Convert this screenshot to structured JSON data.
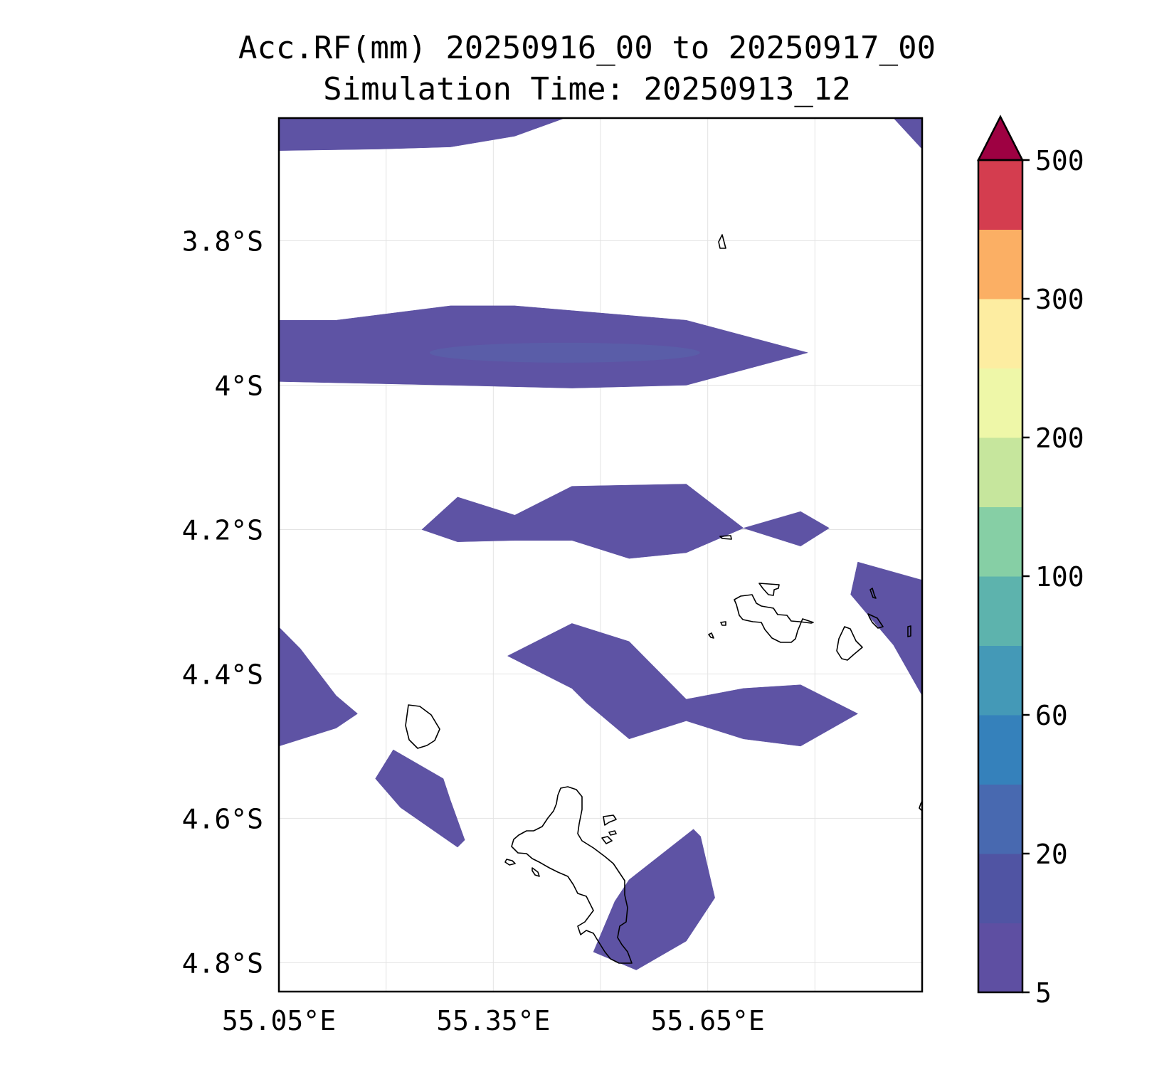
{
  "title": {
    "line1": "Acc.RF(mm) 20250916_00 to 20250917_00",
    "line2": "Simulation Time: 20250913_12"
  },
  "map": {
    "lon_range": [
      55.05,
      55.95
    ],
    "lat_range": [
      -4.84,
      -3.63
    ],
    "lat_ticks": [
      {
        "value": -3.8,
        "label": "3.8°S"
      },
      {
        "value": -4.0,
        "label": "4°S"
      },
      {
        "value": -4.2,
        "label": "4.2°S"
      },
      {
        "value": -4.4,
        "label": "4.4°S"
      },
      {
        "value": -4.6,
        "label": "4.6°S"
      },
      {
        "value": -4.8,
        "label": "4.8°S"
      }
    ],
    "lon_ticks": [
      {
        "value": 55.05,
        "label": "55.05°E"
      },
      {
        "value": 55.35,
        "label": "55.35°E"
      },
      {
        "value": 55.65,
        "label": "55.65°E"
      }
    ],
    "grid_lons": [
      55.05,
      55.2,
      55.35,
      55.5,
      55.65,
      55.8
    ],
    "grid_lats": [
      -3.8,
      -4.0,
      -4.2,
      -4.4,
      -4.6,
      -4.8
    ],
    "grid": true,
    "fill_color": "#5e53a4",
    "fill_color_inner": "#5a5ea8",
    "coast_color": "#000000"
  },
  "colorbar": {
    "levels": [
      5,
      10,
      20,
      40,
      60,
      80,
      100,
      150,
      200,
      250,
      300,
      400,
      500
    ],
    "tick_labels": [
      "5",
      "20",
      "60",
      "100",
      "200",
      "300",
      "500"
    ],
    "tick_values": [
      5,
      20,
      60,
      100,
      200,
      300,
      500
    ],
    "colors": [
      "#5e4fa2",
      "#5054a3",
      "#4869b0",
      "#3581bb",
      "#4499b7",
      "#5db3ad",
      "#86cfa5",
      "#c6e69d",
      "#eef7a8",
      "#fdeda1",
      "#fbaf64",
      "#d43d4f"
    ],
    "over_color": "#9e0142",
    "extend": "max"
  },
  "chart_data": {
    "type": "contourf-map",
    "title": "Acc.RF(mm) 20250916_00 to 20250917_00\nSimulation Time: 20250913_12",
    "note": "Filled contours of accumulated rainfall; all visible shaded regions fall in the lowest band (5 mm)",
    "regions_lon_lat": [
      {
        "name": "band-top-edge",
        "points": [
          [
            55.05,
            -3.675
          ],
          [
            55.05,
            -3.63
          ],
          [
            55.45,
            -3.63
          ],
          [
            55.38,
            -3.655
          ],
          [
            55.29,
            -3.67
          ],
          [
            55.19,
            -3.673
          ],
          [
            55.05,
            -3.675
          ]
        ]
      },
      {
        "name": "corner-top-right",
        "points": [
          [
            55.91,
            -3.63
          ],
          [
            55.95,
            -3.63
          ],
          [
            55.95,
            -3.673
          ]
        ]
      },
      {
        "name": "band-3.95S",
        "points": [
          [
            55.05,
            -3.91
          ],
          [
            55.13,
            -3.91
          ],
          [
            55.29,
            -3.89
          ],
          [
            55.38,
            -3.89
          ],
          [
            55.62,
            -3.91
          ],
          [
            55.79,
            -3.955
          ],
          [
            55.62,
            -4.0
          ],
          [
            55.46,
            -4.004
          ],
          [
            55.29,
            -4.0
          ],
          [
            55.05,
            -3.995
          ]
        ]
      },
      {
        "name": "band-4.2S",
        "points": [
          [
            55.25,
            -4.2
          ],
          [
            55.3,
            -4.155
          ],
          [
            55.38,
            -4.18
          ],
          [
            55.46,
            -4.14
          ],
          [
            55.62,
            -4.137
          ],
          [
            55.7,
            -4.198
          ],
          [
            55.78,
            -4.175
          ],
          [
            55.82,
            -4.198
          ],
          [
            55.78,
            -4.223
          ],
          [
            55.7,
            -4.198
          ],
          [
            55.62,
            -4.232
          ],
          [
            55.54,
            -4.24
          ],
          [
            55.46,
            -4.215
          ],
          [
            55.38,
            -4.215
          ],
          [
            55.3,
            -4.217
          ]
        ]
      },
      {
        "name": "patch-right-4.3S",
        "points": [
          [
            55.86,
            -4.245
          ],
          [
            55.95,
            -4.27
          ],
          [
            55.95,
            -4.43
          ],
          [
            55.91,
            -4.36
          ],
          [
            55.85,
            -4.29
          ]
        ]
      },
      {
        "name": "band-4.4S",
        "points": [
          [
            55.37,
            -4.375
          ],
          [
            55.46,
            -4.33
          ],
          [
            55.54,
            -4.355
          ],
          [
            55.62,
            -4.435
          ],
          [
            55.7,
            -4.42
          ],
          [
            55.78,
            -4.415
          ],
          [
            55.86,
            -4.455
          ],
          [
            55.78,
            -4.5
          ],
          [
            55.7,
            -4.49
          ],
          [
            55.62,
            -4.465
          ],
          [
            55.54,
            -4.49
          ],
          [
            55.48,
            -4.44
          ],
          [
            55.46,
            -4.42
          ],
          [
            55.38,
            -4.38
          ]
        ]
      },
      {
        "name": "patch-left-4.4S",
        "points": [
          [
            55.05,
            -4.335
          ],
          [
            55.08,
            -4.365
          ],
          [
            55.13,
            -4.43
          ],
          [
            55.16,
            -4.455
          ],
          [
            55.13,
            -4.475
          ],
          [
            55.05,
            -4.5
          ]
        ]
      },
      {
        "name": "patch-4.55S",
        "points": [
          [
            55.185,
            -4.545
          ],
          [
            55.21,
            -4.505
          ],
          [
            55.28,
            -4.545
          ],
          [
            55.29,
            -4.575
          ],
          [
            55.31,
            -4.63
          ],
          [
            55.3,
            -4.64
          ],
          [
            55.22,
            -4.585
          ]
        ]
      },
      {
        "name": "patch-mahe-east",
        "points": [
          [
            55.54,
            -4.685
          ],
          [
            55.63,
            -4.615
          ],
          [
            55.64,
            -4.625
          ],
          [
            55.66,
            -4.71
          ],
          [
            55.62,
            -4.77
          ],
          [
            55.55,
            -4.81
          ],
          [
            55.49,
            -4.785
          ],
          [
            55.52,
            -4.715
          ]
        ]
      }
    ]
  }
}
